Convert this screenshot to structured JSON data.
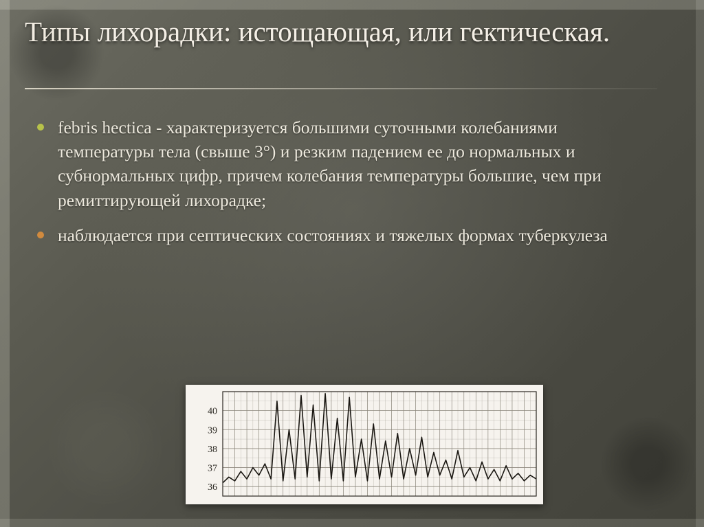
{
  "title": "Типы лихорадки: истощающая, или гектическая.",
  "title_fontsize": 41,
  "title_color": "#f4efe6",
  "underline_color": "#e6e1d2",
  "body_fontsize": 25.5,
  "body_color": "#eeeade",
  "bullets": [
    {
      "text": "febris hectica - характеризуется большими суточными колебаниями температуры тела (свыше 3°) и резким падением ее до нормальных и субнормальных цифр, причем колебания температуры большие, чем при ремиттирующей лихорадке;",
      "bullet_color": "#b7c24a"
    },
    {
      "text": "наблюдается при септических состояниях и тяжелых формах туберкулеза",
      "bullet_color": "#d18a3e"
    }
  ],
  "chart": {
    "type": "line",
    "background_color": "#f6f3ee",
    "grid_color": "#8a857a",
    "axis_color": "#2b2822",
    "line_color": "#1a1712",
    "line_width": 1.6,
    "ylabel_fontsize": 14,
    "ylabel_color": "#2b2822",
    "ylim": [
      35.5,
      41
    ],
    "yticks": [
      36,
      37,
      38,
      39,
      40
    ],
    "values": [
      36.2,
      36.5,
      36.3,
      36.8,
      36.4,
      37.0,
      36.6,
      37.2,
      36.4,
      40.5,
      36.3,
      39.0,
      36.4,
      40.8,
      36.5,
      40.3,
      36.3,
      40.9,
      36.4,
      39.6,
      36.3,
      40.7,
      36.5,
      38.5,
      36.3,
      39.3,
      36.4,
      38.4,
      36.5,
      38.8,
      36.4,
      38.0,
      36.6,
      38.6,
      36.5,
      37.8,
      36.6,
      37.4,
      36.4,
      37.9,
      36.5,
      37.0,
      36.3,
      37.3,
      36.4,
      36.9,
      36.3,
      37.1,
      36.4,
      36.7,
      36.3,
      36.6,
      36.4
    ]
  },
  "slide_background": {
    "base_color": "#55554c",
    "vignette_color": "#2e2e28"
  }
}
